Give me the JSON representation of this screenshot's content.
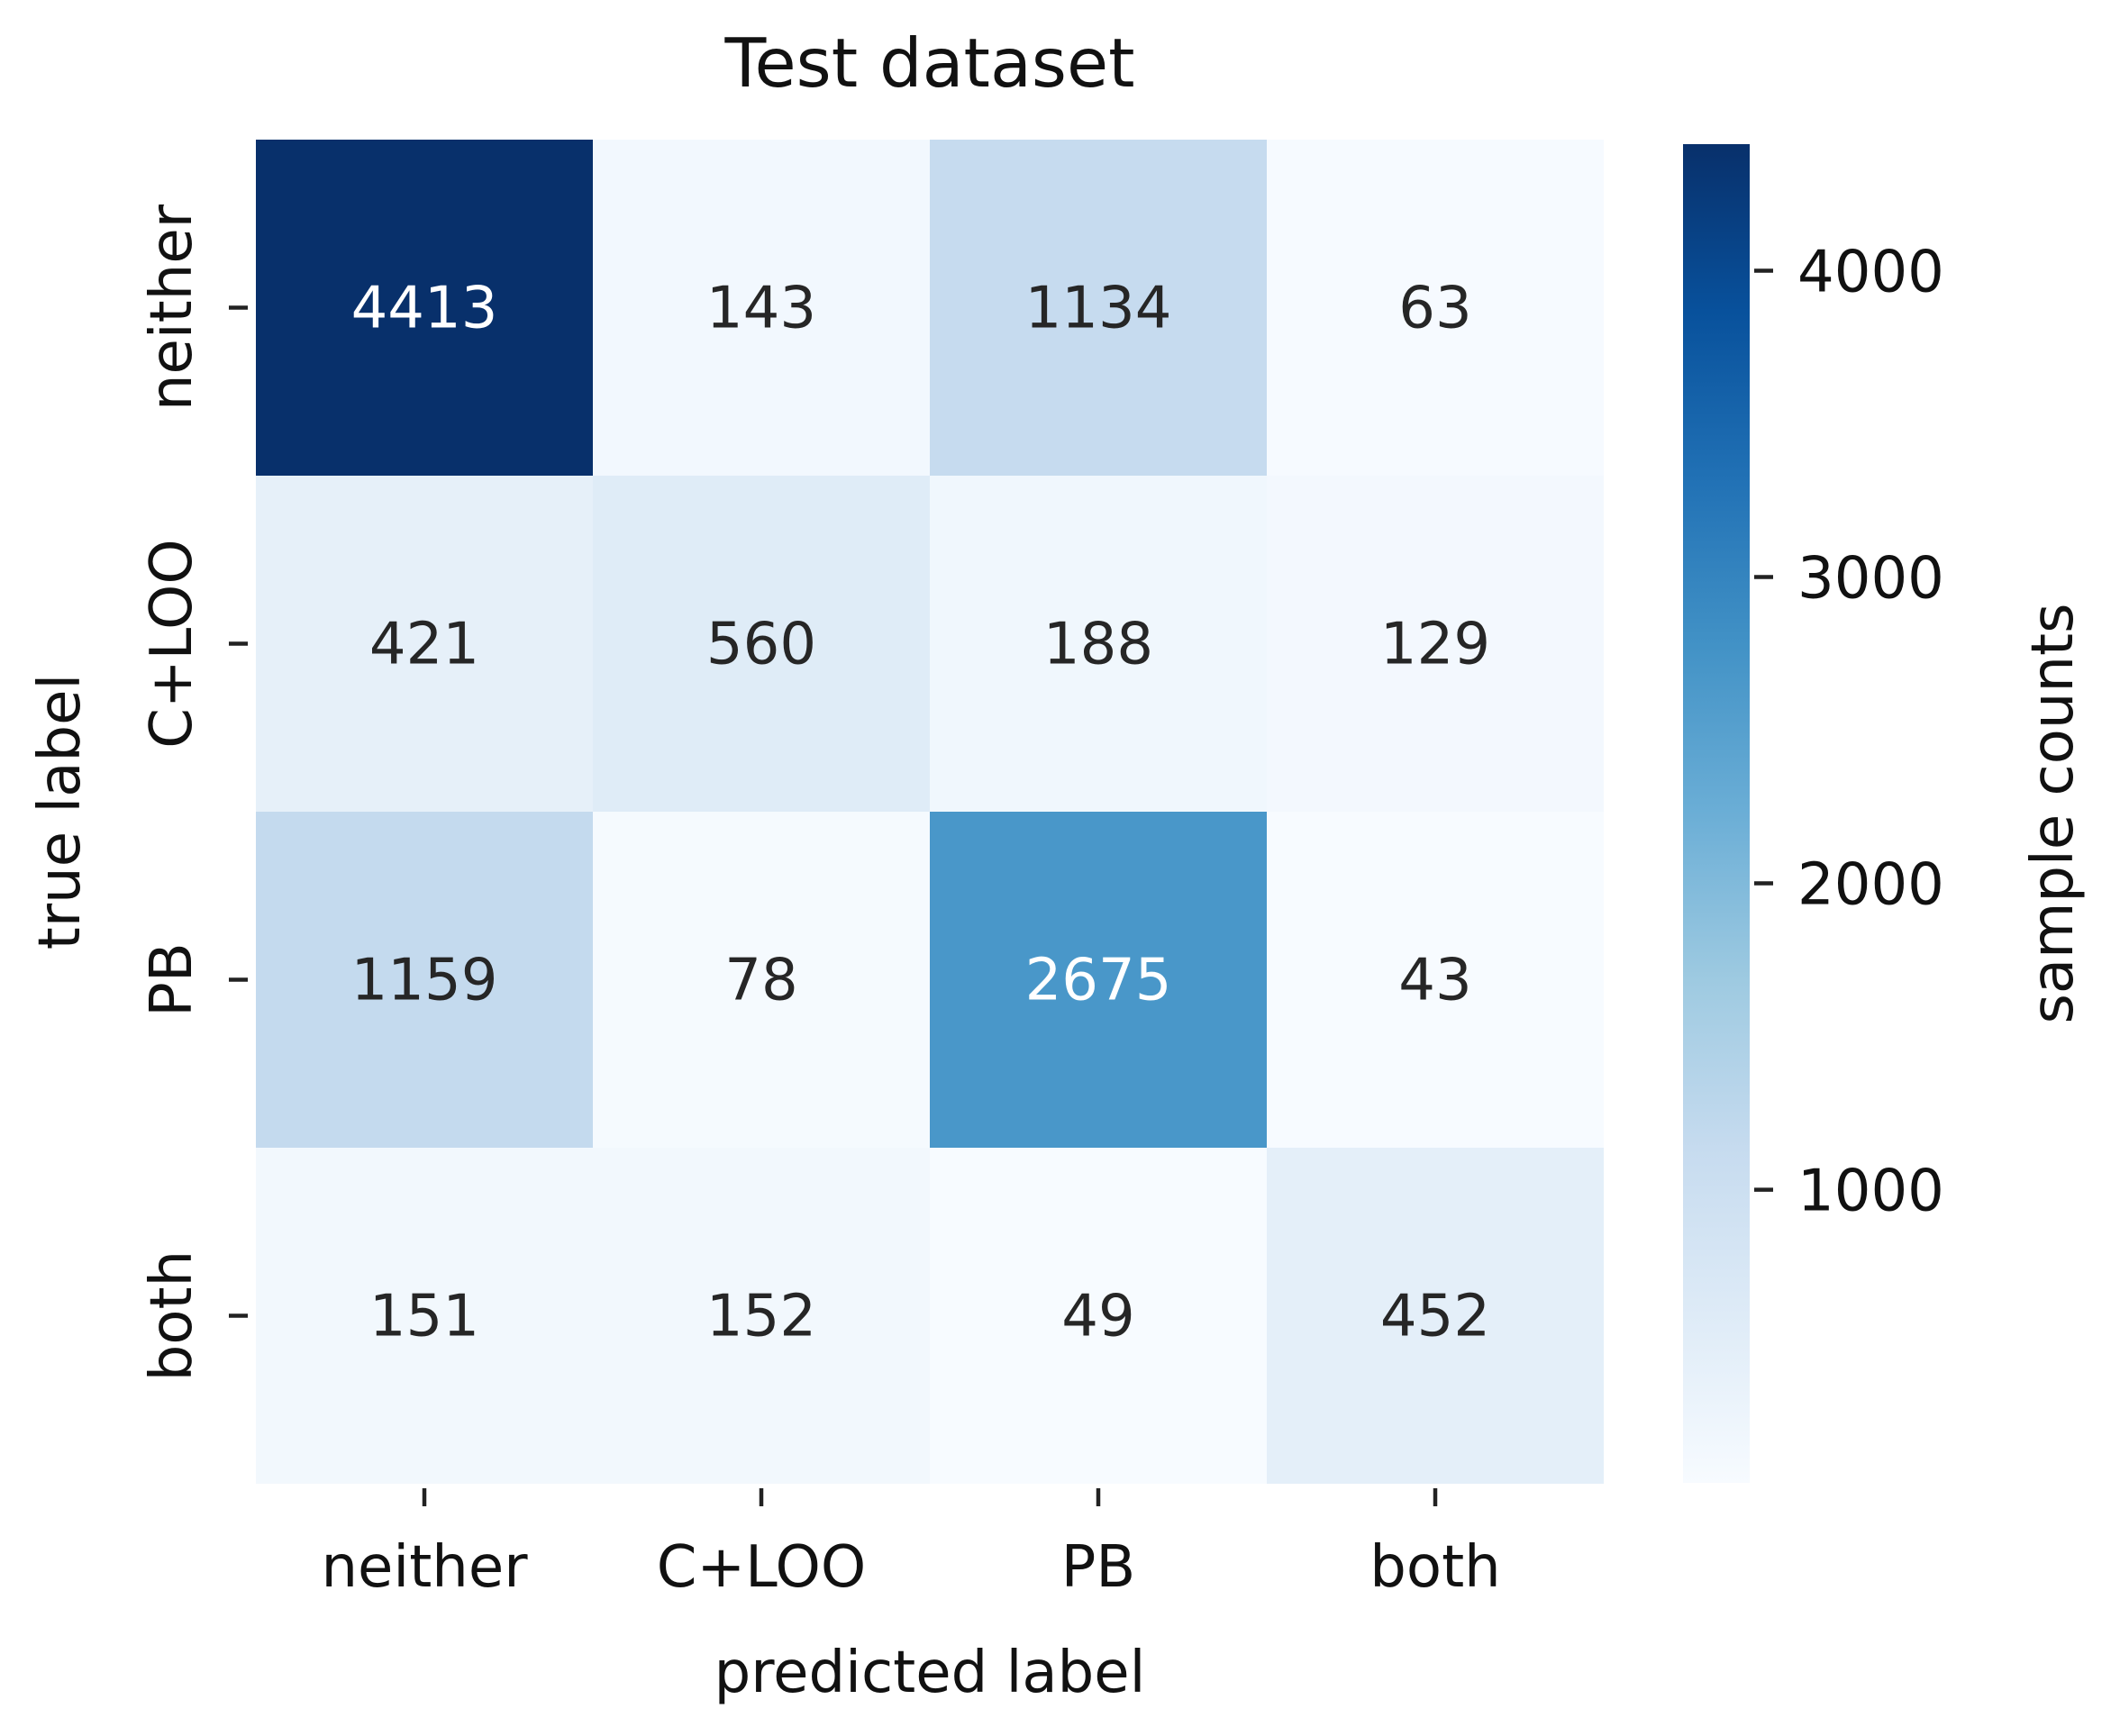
{
  "chart_data": {
    "type": "heatmap",
    "title": "Test dataset",
    "xlabel": "predicted label",
    "ylabel": "true label",
    "x_categories": [
      "neither",
      "C+LOO",
      "PB",
      "both"
    ],
    "y_categories": [
      "neither",
      "C+LOO",
      "PB",
      "both"
    ],
    "values": [
      [
        4413,
        143,
        1134,
        63
      ],
      [
        421,
        560,
        188,
        129
      ],
      [
        1159,
        78,
        2675,
        43
      ],
      [
        151,
        152,
        49,
        452
      ]
    ],
    "colorbar": {
      "label": "sample counts",
      "ticks": [
        1000,
        2000,
        3000,
        4000
      ],
      "range": [
        43,
        4413
      ],
      "colormap": "Blues"
    }
  }
}
